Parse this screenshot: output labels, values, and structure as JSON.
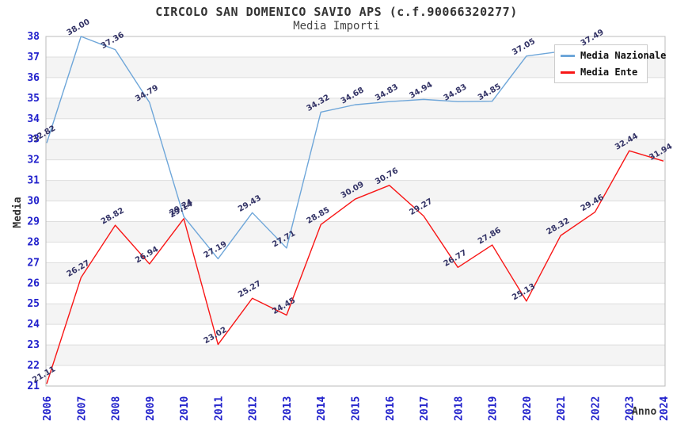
{
  "chart": {
    "title": "CIRCOLO SAN DOMENICO SAVIO APS (c.f.90066320277)",
    "subtitle": "Media Importi",
    "y_axis_title": "Media",
    "x_axis_title": "Anno"
  },
  "legend": {
    "position": "top-right",
    "items": [
      {
        "label": "Media Nazionale",
        "color": "#6EA6D9"
      },
      {
        "label": "Media Ente",
        "color": "#F81616"
      }
    ]
  },
  "chart_data": {
    "type": "line",
    "title": "CIRCOLO SAN DOMENICO SAVIO APS (c.f.90066320277)",
    "subtitle": "Media Importi",
    "xlabel": "Anno",
    "ylabel": "Media",
    "x": [
      2006,
      2007,
      2008,
      2009,
      2010,
      2011,
      2012,
      2013,
      2014,
      2015,
      2016,
      2017,
      2018,
      2019,
      2020,
      2021,
      2022,
      2023,
      2024
    ],
    "series": [
      {
        "name": "Media Nazionale",
        "color": "#6EA6D9",
        "values": [
          32.82,
          38.0,
          37.36,
          34.79,
          29.24,
          27.19,
          29.43,
          27.71,
          34.32,
          34.68,
          34.83,
          34.94,
          34.83,
          34.85,
          37.05,
          null,
          37.49,
          null,
          null
        ]
      },
      {
        "name": "Media Ente",
        "color": "#F81616",
        "values": [
          21.11,
          26.27,
          28.82,
          26.94,
          29.14,
          23.02,
          25.27,
          24.45,
          28.85,
          30.09,
          30.76,
          29.27,
          26.77,
          27.86,
          25.13,
          28.32,
          29.46,
          32.44,
          31.94
        ]
      }
    ],
    "ylim": [
      21,
      38
    ],
    "y_tick_step": 1,
    "grid": true,
    "band_color": "#F4F4F4",
    "grid_color": "#DEDEDE",
    "border_color": "#BBBBBB",
    "tick_color": "#2222CC",
    "value_label_color": "#333366",
    "legend_position": "top-right"
  }
}
